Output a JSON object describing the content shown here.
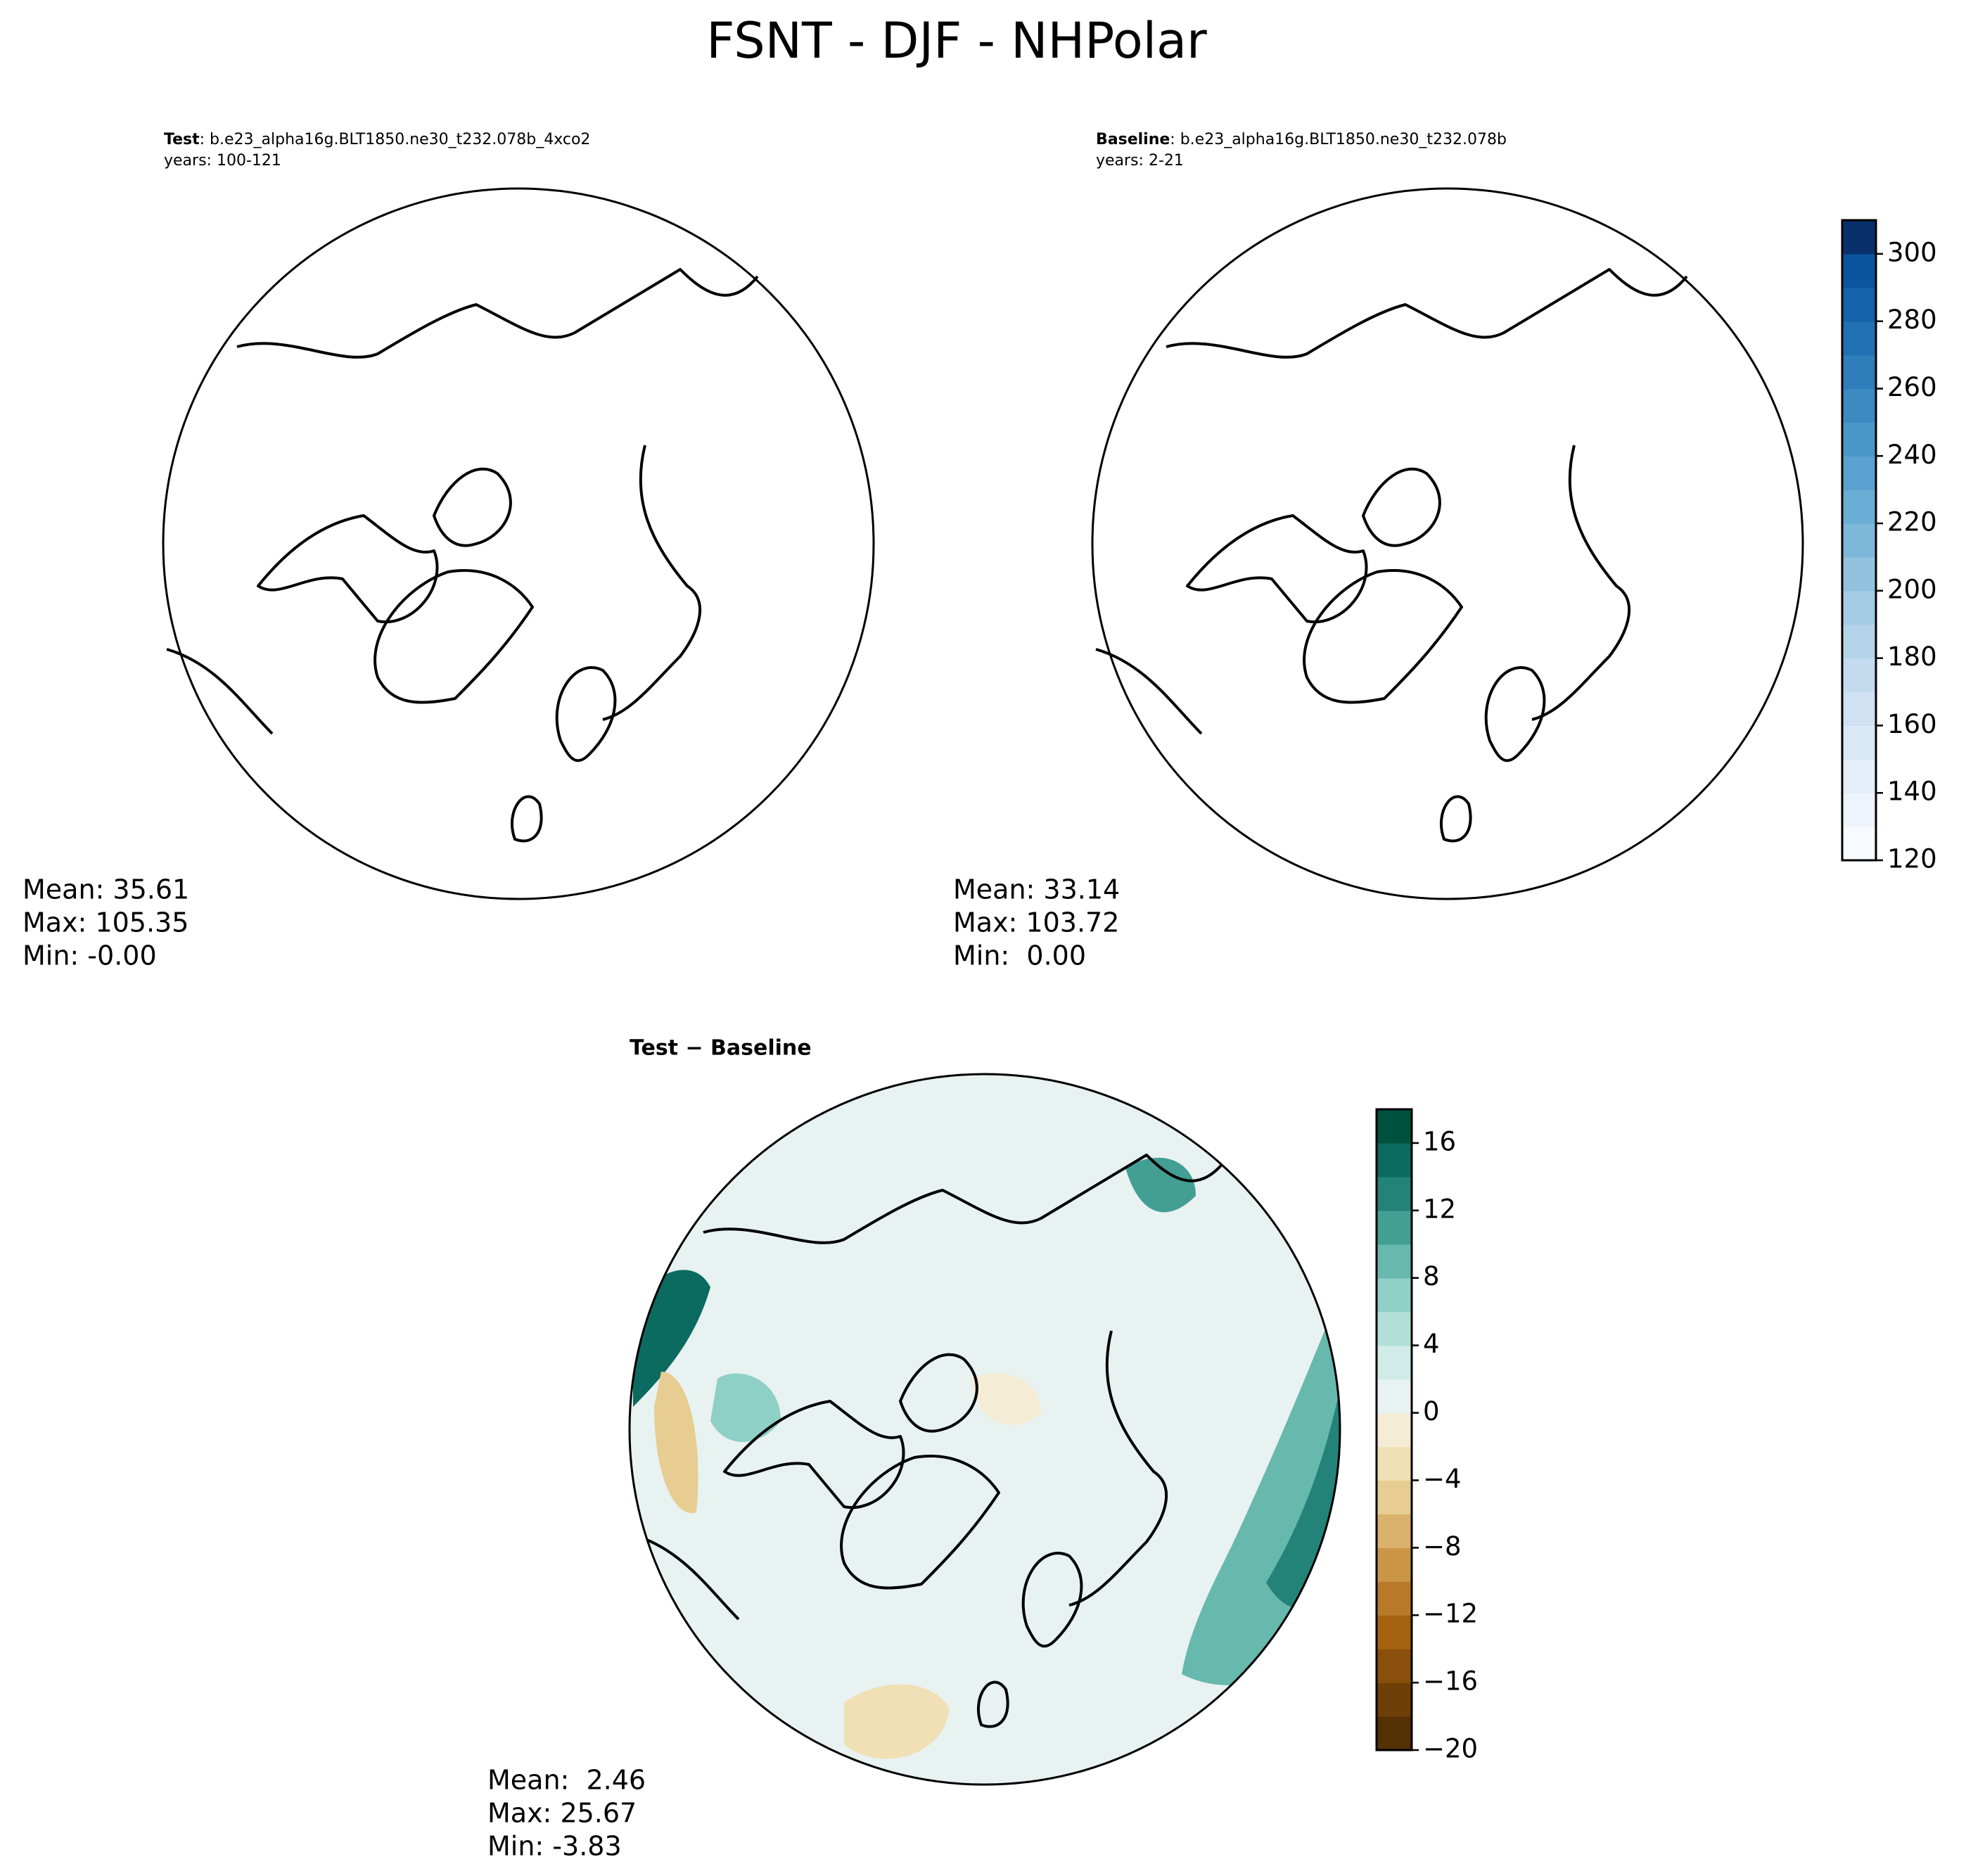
{
  "title": "FSNT - DJF - NHPolar",
  "panels": [
    {
      "name": "Test",
      "case": ": b.e23_alpha16g.BLT1850.ne30_t232.078b_4xco2",
      "years": "years: 100-121",
      "stats": [
        "Mean: 35.61",
        "Max: 105.35",
        "Min: -0.00"
      ]
    },
    {
      "name": "Baseline",
      "case": ": b.e23_alpha16g.BLT1850.ne30_t232.078b",
      "years": "years: 2-21",
      "stats": [
        "Mean: 33.14",
        "Max: 103.72",
        "Min:  0.00"
      ]
    },
    {
      "name": "Test − Baseline",
      "stats": [
        "Mean:  2.46",
        "Max: 25.67",
        "Min: -3.83"
      ]
    }
  ],
  "colorbars": [
    {
      "lim": [
        120,
        310
      ],
      "ticks": [
        120,
        140,
        160,
        180,
        200,
        220,
        240,
        260,
        280,
        300
      ],
      "colors": [
        "#f7fbff",
        "#edf4fc",
        "#e3eef9",
        "#d9e8f5",
        "#cfe1f2",
        "#c4daee",
        "#b5d4e9",
        "#a4cbe4",
        "#91c3de",
        "#7db8da",
        "#6aaed6",
        "#5aa2cf",
        "#4a97c9",
        "#3b8bc2",
        "#2e7ebc",
        "#2070b4",
        "#1563aa",
        "#0b559f",
        "#08306b"
      ]
    },
    {
      "lim": [
        -20,
        18
      ],
      "ticks": [
        {
          "value": -20,
          "label": "−20"
        },
        {
          "value": -16,
          "label": "−16"
        },
        {
          "value": -12,
          "label": "−12"
        },
        {
          "value": -8,
          "label": "−8"
        },
        {
          "value": -4,
          "label": "−4"
        },
        0,
        4,
        8,
        12,
        16
      ],
      "colors": [
        "#543005",
        "#6f3f08",
        "#8a500b",
        "#a4620f",
        "#b87a28",
        "#cb9547",
        "#dab26b",
        "#e7cd91",
        "#f1dfb5",
        "#f5ecd6",
        "#e8f2f1",
        "#d1ece8",
        "#b1e0d8",
        "#8ed0c5",
        "#67b8ad",
        "#439e94",
        "#238379",
        "#0c6b60",
        "#01513f"
      ]
    }
  ]
}
